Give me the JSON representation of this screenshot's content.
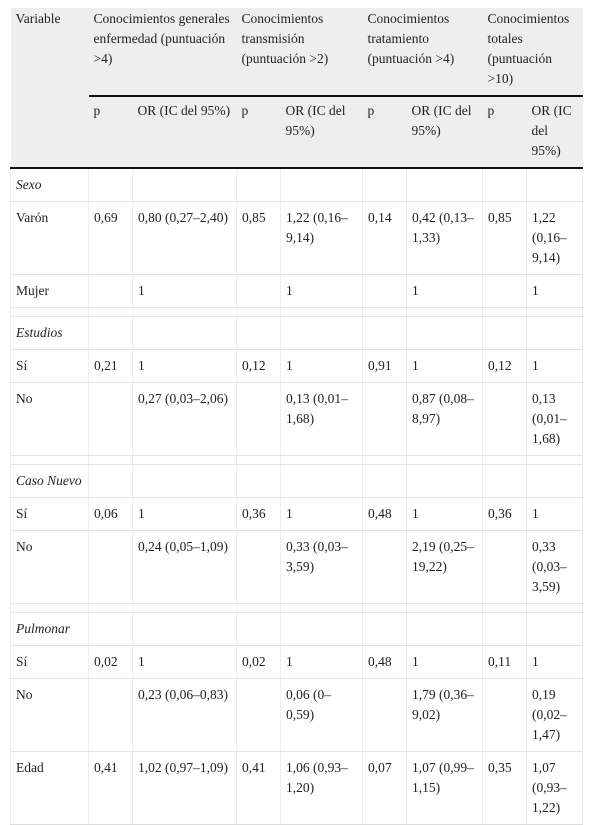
{
  "table": {
    "header": {
      "variable": "Variable",
      "groups": [
        "Conocimientos generales enfermedad (puntuación >4)",
        "Conocimientos transmisión (puntuación >2)",
        "Conocimientos tratamiento (puntuación >4)",
        "Conocimientos totales (puntuación >10)"
      ],
      "sub": [
        "p",
        "OR (IC del 95%)",
        "p",
        "OR (IC del 95%)",
        "p",
        "OR (IC del 95%)",
        "p",
        "OR (IC del 95%)"
      ]
    },
    "sections": [
      {
        "title": "Sexo",
        "rows": [
          [
            "Varón",
            "0,69",
            "0,80 (0,27–2,40)",
            "0,85",
            "1,22 (0,16–9,14)",
            "0,14",
            "0,42 (0,13–1,33)",
            "0,85",
            "1,22 (0,16–9,14)"
          ],
          [
            "Mujer",
            null,
            "1",
            null,
            "1",
            null,
            "1",
            null,
            "1"
          ]
        ]
      },
      {
        "title": "Estudios",
        "rows": [
          [
            "Sí",
            "0,21",
            "1",
            "0,12",
            "1",
            "0,91",
            "1",
            "0,12",
            "1"
          ],
          [
            "No",
            null,
            "0,27 (0,03–2,06)",
            null,
            "0,13 (0,01–1,68)",
            null,
            "0,87 (0,08–8,97)",
            null,
            "0,13 (0,01–1,68)"
          ]
        ]
      },
      {
        "title": "Caso Nuevo",
        "rows": [
          [
            "Sí",
            "0,06",
            "1",
            "0,36",
            "1",
            "0,48",
            "1",
            "0,36",
            "1"
          ],
          [
            "No",
            null,
            "0,24 (0,05–1,09)",
            null,
            "0,33 (0,03–3,59)",
            null,
            "2,19 (0,25–19,22)",
            null,
            "0,33 (0,03–3,59)"
          ]
        ]
      },
      {
        "title": "Pulmonar",
        "rows": [
          [
            "Sí",
            "0,02",
            "1",
            "0,02",
            "1",
            "0,48",
            "1",
            "0,11",
            "1"
          ],
          [
            "No",
            null,
            "0,23 (0,06–0,83)",
            null,
            "0,06 (0–0,59)",
            null,
            "1,79 (0,36–9,02)",
            null,
            "0,19 (0,02–1,47)"
          ],
          [
            "Edad",
            "0,41",
            "1,02 (0,97–1,09)",
            "0,41",
            "1,06 (0,93–1,20)",
            "0,07",
            "1,07 (0,99–1,15)",
            "0,35",
            "1,07 (0,93–1,22)"
          ]
        ]
      }
    ]
  }
}
